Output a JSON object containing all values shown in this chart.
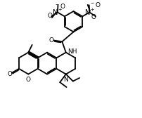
{
  "bg": "#ffffff",
  "lc": "#000000",
  "lw": 1.3,
  "fs": 6.5,
  "xlim": [
    -1.5,
    9.5
  ],
  "ylim": [
    -2.5,
    8.0
  ]
}
